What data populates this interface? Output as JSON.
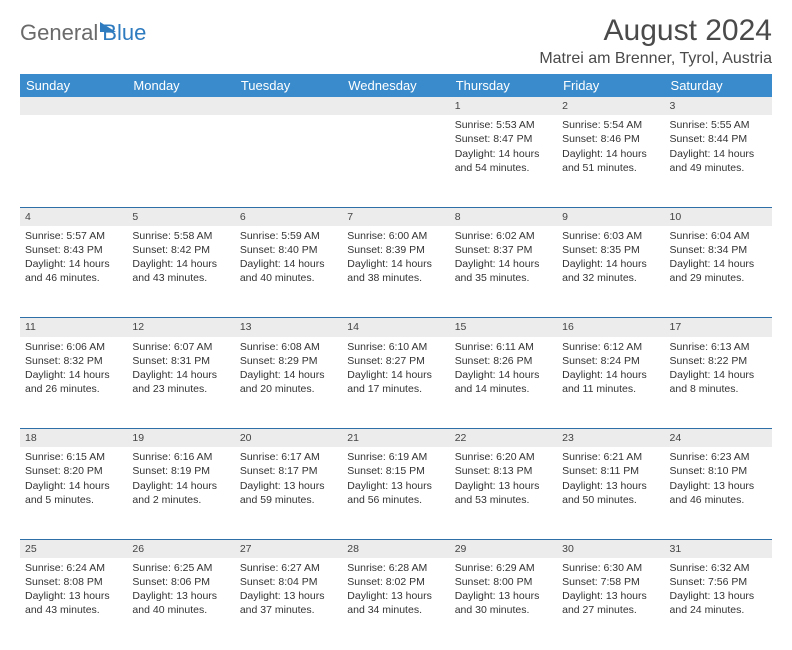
{
  "logo": {
    "part1": "General",
    "part2": "Blue"
  },
  "header": {
    "title": "August 2024",
    "location": "Matrei am Brenner, Tyrol, Austria"
  },
  "colors": {
    "header_bg": "#3a8bcb",
    "header_fg": "#ffffff",
    "daynum_bg": "#ececec",
    "row_divider": "#2f6fa8",
    "text": "#333333",
    "logo_gray": "#6a6a6a",
    "logo_blue": "#2f7bbf"
  },
  "weekdays": [
    "Sunday",
    "Monday",
    "Tuesday",
    "Wednesday",
    "Thursday",
    "Friday",
    "Saturday"
  ],
  "weeks": [
    {
      "nums": [
        "",
        "",
        "",
        "",
        "1",
        "2",
        "3"
      ],
      "cells": [
        [],
        [],
        [],
        [],
        [
          "Sunrise: 5:53 AM",
          "Sunset: 8:47 PM",
          "Daylight: 14 hours",
          "and 54 minutes."
        ],
        [
          "Sunrise: 5:54 AM",
          "Sunset: 8:46 PM",
          "Daylight: 14 hours",
          "and 51 minutes."
        ],
        [
          "Sunrise: 5:55 AM",
          "Sunset: 8:44 PM",
          "Daylight: 14 hours",
          "and 49 minutes."
        ]
      ]
    },
    {
      "nums": [
        "4",
        "5",
        "6",
        "7",
        "8",
        "9",
        "10"
      ],
      "cells": [
        [
          "Sunrise: 5:57 AM",
          "Sunset: 8:43 PM",
          "Daylight: 14 hours",
          "and 46 minutes."
        ],
        [
          "Sunrise: 5:58 AM",
          "Sunset: 8:42 PM",
          "Daylight: 14 hours",
          "and 43 minutes."
        ],
        [
          "Sunrise: 5:59 AM",
          "Sunset: 8:40 PM",
          "Daylight: 14 hours",
          "and 40 minutes."
        ],
        [
          "Sunrise: 6:00 AM",
          "Sunset: 8:39 PM",
          "Daylight: 14 hours",
          "and 38 minutes."
        ],
        [
          "Sunrise: 6:02 AM",
          "Sunset: 8:37 PM",
          "Daylight: 14 hours",
          "and 35 minutes."
        ],
        [
          "Sunrise: 6:03 AM",
          "Sunset: 8:35 PM",
          "Daylight: 14 hours",
          "and 32 minutes."
        ],
        [
          "Sunrise: 6:04 AM",
          "Sunset: 8:34 PM",
          "Daylight: 14 hours",
          "and 29 minutes."
        ]
      ]
    },
    {
      "nums": [
        "11",
        "12",
        "13",
        "14",
        "15",
        "16",
        "17"
      ],
      "cells": [
        [
          "Sunrise: 6:06 AM",
          "Sunset: 8:32 PM",
          "Daylight: 14 hours",
          "and 26 minutes."
        ],
        [
          "Sunrise: 6:07 AM",
          "Sunset: 8:31 PM",
          "Daylight: 14 hours",
          "and 23 minutes."
        ],
        [
          "Sunrise: 6:08 AM",
          "Sunset: 8:29 PM",
          "Daylight: 14 hours",
          "and 20 minutes."
        ],
        [
          "Sunrise: 6:10 AM",
          "Sunset: 8:27 PM",
          "Daylight: 14 hours",
          "and 17 minutes."
        ],
        [
          "Sunrise: 6:11 AM",
          "Sunset: 8:26 PM",
          "Daylight: 14 hours",
          "and 14 minutes."
        ],
        [
          "Sunrise: 6:12 AM",
          "Sunset: 8:24 PM",
          "Daylight: 14 hours",
          "and 11 minutes."
        ],
        [
          "Sunrise: 6:13 AM",
          "Sunset: 8:22 PM",
          "Daylight: 14 hours",
          "and 8 minutes."
        ]
      ]
    },
    {
      "nums": [
        "18",
        "19",
        "20",
        "21",
        "22",
        "23",
        "24"
      ],
      "cells": [
        [
          "Sunrise: 6:15 AM",
          "Sunset: 8:20 PM",
          "Daylight: 14 hours",
          "and 5 minutes."
        ],
        [
          "Sunrise: 6:16 AM",
          "Sunset: 8:19 PM",
          "Daylight: 14 hours",
          "and 2 minutes."
        ],
        [
          "Sunrise: 6:17 AM",
          "Sunset: 8:17 PM",
          "Daylight: 13 hours",
          "and 59 minutes."
        ],
        [
          "Sunrise: 6:19 AM",
          "Sunset: 8:15 PM",
          "Daylight: 13 hours",
          "and 56 minutes."
        ],
        [
          "Sunrise: 6:20 AM",
          "Sunset: 8:13 PM",
          "Daylight: 13 hours",
          "and 53 minutes."
        ],
        [
          "Sunrise: 6:21 AM",
          "Sunset: 8:11 PM",
          "Daylight: 13 hours",
          "and 50 minutes."
        ],
        [
          "Sunrise: 6:23 AM",
          "Sunset: 8:10 PM",
          "Daylight: 13 hours",
          "and 46 minutes."
        ]
      ]
    },
    {
      "nums": [
        "25",
        "26",
        "27",
        "28",
        "29",
        "30",
        "31"
      ],
      "cells": [
        [
          "Sunrise: 6:24 AM",
          "Sunset: 8:08 PM",
          "Daylight: 13 hours",
          "and 43 minutes."
        ],
        [
          "Sunrise: 6:25 AM",
          "Sunset: 8:06 PM",
          "Daylight: 13 hours",
          "and 40 minutes."
        ],
        [
          "Sunrise: 6:27 AM",
          "Sunset: 8:04 PM",
          "Daylight: 13 hours",
          "and 37 minutes."
        ],
        [
          "Sunrise: 6:28 AM",
          "Sunset: 8:02 PM",
          "Daylight: 13 hours",
          "and 34 minutes."
        ],
        [
          "Sunrise: 6:29 AM",
          "Sunset: 8:00 PM",
          "Daylight: 13 hours",
          "and 30 minutes."
        ],
        [
          "Sunrise: 6:30 AM",
          "Sunset: 7:58 PM",
          "Daylight: 13 hours",
          "and 27 minutes."
        ],
        [
          "Sunrise: 6:32 AM",
          "Sunset: 7:56 PM",
          "Daylight: 13 hours",
          "and 24 minutes."
        ]
      ]
    }
  ]
}
